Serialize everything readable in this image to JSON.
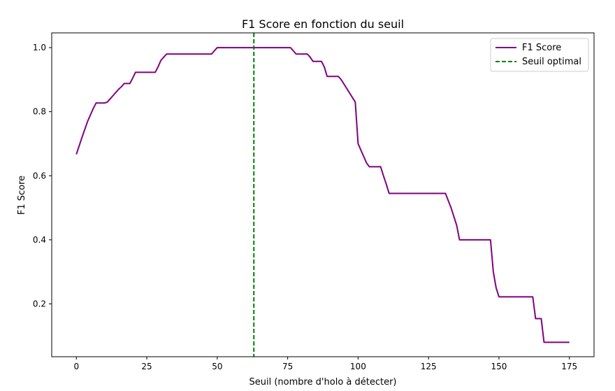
{
  "chart_data": {
    "type": "line",
    "title": "F1 Score en fonction du seuil",
    "xlabel": "Seuil (nombre d'holo à détecter)",
    "ylabel": "F1 Score",
    "xlim": [
      -8.75,
      183.75
    ],
    "ylim": [
      0.035,
      1.046
    ],
    "xticks": [
      0,
      25,
      50,
      75,
      100,
      125,
      150,
      175
    ],
    "yticks": [
      0.2,
      0.4,
      0.6,
      0.8,
      1.0
    ],
    "ytick_labels": [
      "0.2",
      "0.4",
      "0.6",
      "0.8",
      "1.0"
    ],
    "grid": false,
    "legend_position": "top-right",
    "series": [
      {
        "name": "F1 Score",
        "color": "#800080",
        "style": "solid",
        "x": [
          0,
          2,
          4,
          5,
          6,
          7,
          8,
          9,
          10,
          11,
          12,
          13,
          14,
          15,
          16,
          17,
          18,
          19,
          20,
          21,
          28,
          29,
          30,
          31,
          32,
          33,
          48,
          49,
          50,
          75,
          76,
          77,
          78,
          82,
          83,
          84,
          85,
          86,
          87,
          88,
          89,
          90,
          91,
          92,
          93,
          94,
          99,
          100,
          101,
          102,
          103,
          104,
          105,
          106,
          107,
          108,
          109,
          110,
          111,
          112,
          130,
          131,
          133,
          135,
          136,
          137,
          146,
          147,
          148,
          149,
          150,
          160,
          161,
          162,
          163,
          164,
          165,
          166,
          175
        ],
        "y": [
          0.667,
          0.72,
          0.77,
          0.79,
          0.81,
          0.827,
          0.827,
          0.827,
          0.827,
          0.83,
          0.84,
          0.85,
          0.86,
          0.87,
          0.878,
          0.888,
          0.888,
          0.888,
          0.905,
          0.923,
          0.923,
          0.94,
          0.96,
          0.97,
          0.98,
          0.98,
          0.98,
          0.99,
          1.0,
          1.0,
          1.0,
          0.99,
          0.98,
          0.98,
          0.97,
          0.957,
          0.957,
          0.957,
          0.957,
          0.94,
          0.91,
          0.91,
          0.91,
          0.91,
          0.91,
          0.9,
          0.83,
          0.7,
          0.68,
          0.66,
          0.64,
          0.628,
          0.628,
          0.628,
          0.628,
          0.628,
          0.6,
          0.574,
          0.545,
          0.545,
          0.545,
          0.545,
          0.5,
          0.445,
          0.4,
          0.4,
          0.4,
          0.4,
          0.3,
          0.25,
          0.222,
          0.222,
          0.222,
          0.222,
          0.154,
          0.154,
          0.154,
          0.08,
          0.08
        ]
      },
      {
        "name": "Seuil optimal",
        "color": "#008000",
        "style": "dashed",
        "vline_x": 63
      }
    ]
  }
}
